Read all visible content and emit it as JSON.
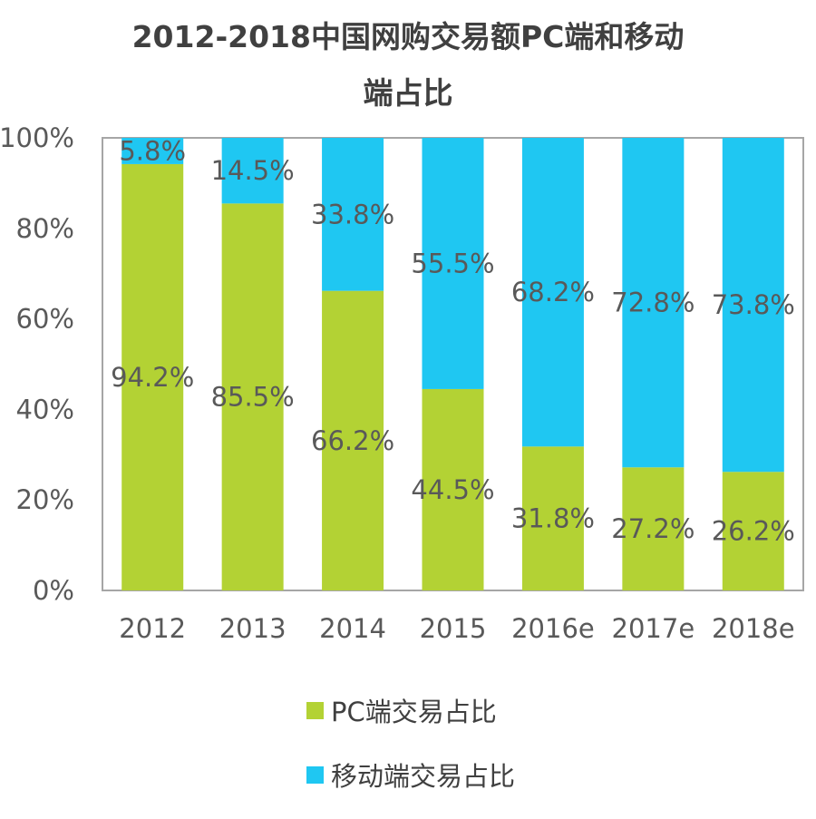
{
  "colors": {
    "pc": "#b3d234",
    "mobile": "#1fc7f2",
    "axis": "#a6a6a6",
    "label": "#595959"
  },
  "chart_data": {
    "type": "bar",
    "stacked": true,
    "title": "2012-2018中国网购交易额PC端和移动端占比",
    "title_lines": [
      "2012-2018中国网购交易额PC端和移动",
      "端占比"
    ],
    "categories": [
      "2012",
      "2013",
      "2014",
      "2015",
      "2016e",
      "2017e",
      "2018e"
    ],
    "series": [
      {
        "name": "PC端交易占比",
        "values": [
          94.2,
          85.5,
          66.2,
          44.5,
          31.8,
          27.2,
          26.2
        ],
        "labels": [
          "94.2%",
          "85.5%",
          "66.2%",
          "44.5%",
          "31.8%",
          "27.2%",
          "26.2%"
        ]
      },
      {
        "name": "移动端交易占比",
        "values": [
          5.8,
          14.5,
          33.8,
          55.5,
          68.2,
          72.8,
          73.8
        ],
        "labels": [
          "5.8%",
          "14.5%",
          "33.8%",
          "55.5%",
          "68.2%",
          "72.8%",
          "73.8%"
        ]
      }
    ],
    "yticks": [
      "0%",
      "20%",
      "40%",
      "60%",
      "80%",
      "100%"
    ],
    "ylim": [
      0,
      100
    ],
    "grid": false,
    "legend_position": "bottom"
  }
}
